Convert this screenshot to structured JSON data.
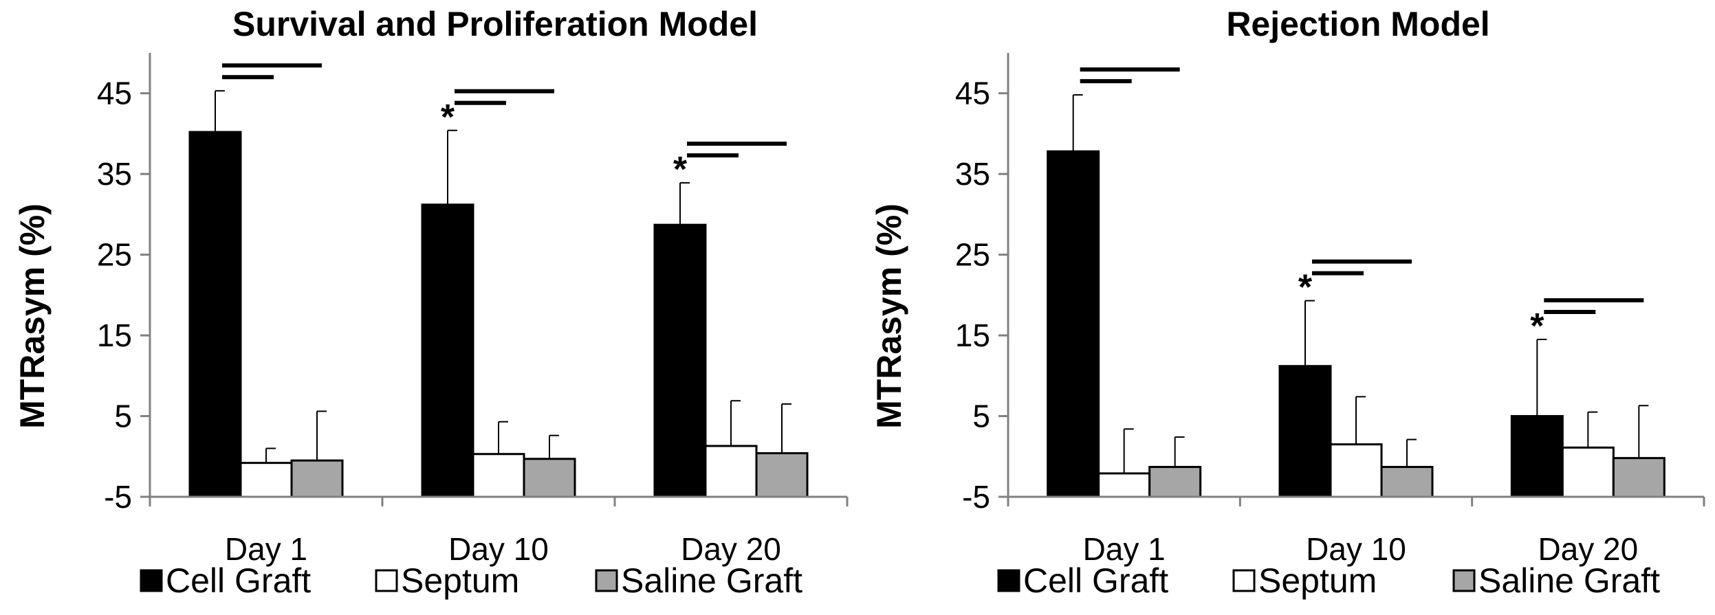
{
  "legend": [
    {
      "name": "Cell Graft",
      "color": "#000000"
    },
    {
      "name": "Septum",
      "color": "#ffffff"
    },
    {
      "name": "Saline Graft",
      "color": "#a6a6a6"
    }
  ],
  "chart_data": [
    {
      "type": "bar",
      "title": "Survival and Proliferation Model",
      "xlabel": "",
      "ylabel": "MTRasym (%)",
      "ylim": [
        -5,
        50
      ],
      "yticks": [
        -5,
        5,
        15,
        25,
        35,
        45
      ],
      "categories": [
        "Day 1",
        "Day 10",
        "Day 20"
      ],
      "series": [
        {
          "name": "Cell Graft",
          "values": [
            40.2,
            31.2,
            28.7
          ],
          "err_plus": [
            5.1,
            9.2,
            5.2
          ]
        },
        {
          "name": "Septum",
          "values": [
            -0.8,
            0.3,
            1.3
          ],
          "err_plus": [
            1.8,
            4.0,
            5.6
          ]
        },
        {
          "name": "Saline Graft",
          "values": [
            -0.5,
            -0.3,
            0.4
          ],
          "err_plus": [
            6.1,
            2.9,
            6.1
          ]
        }
      ],
      "significance_markers": [
        "",
        "*",
        "*"
      ],
      "comparison_bars": true
    },
    {
      "type": "bar",
      "title": "Rejection Model",
      "xlabel": "",
      "ylabel": "MTRasym (%)",
      "ylim": [
        -5,
        50
      ],
      "yticks": [
        -5,
        5,
        15,
        25,
        35,
        45
      ],
      "categories": [
        "Day 1",
        "Day 10",
        "Day 20"
      ],
      "series": [
        {
          "name": "Cell Graft",
          "values": [
            37.8,
            11.2,
            5.0
          ],
          "err_plus": [
            7.0,
            8.1,
            9.5
          ]
        },
        {
          "name": "Septum",
          "values": [
            -2.1,
            1.5,
            1.1
          ],
          "err_plus": [
            5.5,
            5.9,
            4.4
          ]
        },
        {
          "name": "Saline Graft",
          "values": [
            -1.3,
            -1.3,
            -0.2
          ],
          "err_plus": [
            3.7,
            3.4,
            6.5
          ]
        }
      ],
      "significance_markers": [
        "",
        "*",
        "*"
      ],
      "comparison_bars": true
    }
  ]
}
